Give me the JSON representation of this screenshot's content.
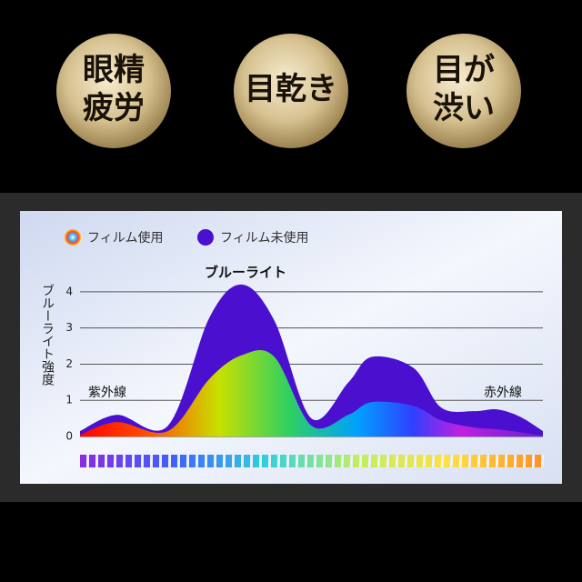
{
  "badges": [
    {
      "lines": [
        "眼精",
        "疲労"
      ]
    },
    {
      "lines": [
        "目乾き"
      ]
    },
    {
      "lines": [
        "目が",
        "渋い"
      ]
    }
  ],
  "chart_data": {
    "type": "area",
    "title": "ブルーライト",
    "y_label": "ブルーライト強度",
    "annotations": [
      "紫外線",
      "赤外線"
    ],
    "x": [
      0,
      8,
      19,
      28,
      35,
      42,
      50,
      58,
      63,
      72,
      78,
      85,
      90,
      95,
      100
    ],
    "xlim": [
      0,
      100
    ],
    "series": [
      {
        "name": "フィルム未使用",
        "color": "#4a0fcf",
        "values": [
          0.15,
          0.6,
          0.3,
          3.3,
          4.2,
          3.2,
          0.5,
          1.5,
          2.2,
          1.9,
          0.8,
          0.7,
          0.75,
          0.55,
          0.15
        ]
      },
      {
        "name": "フィルム使用",
        "values": [
          0.05,
          0.4,
          0.15,
          1.6,
          2.25,
          2.2,
          0.3,
          0.6,
          0.95,
          0.85,
          0.45,
          0.25,
          0.2,
          0.12,
          0.03
        ]
      }
    ],
    "ylim": [
      0,
      4.4
    ],
    "yticks": [
      0,
      1,
      2,
      3,
      4
    ],
    "grid": true
  }
}
